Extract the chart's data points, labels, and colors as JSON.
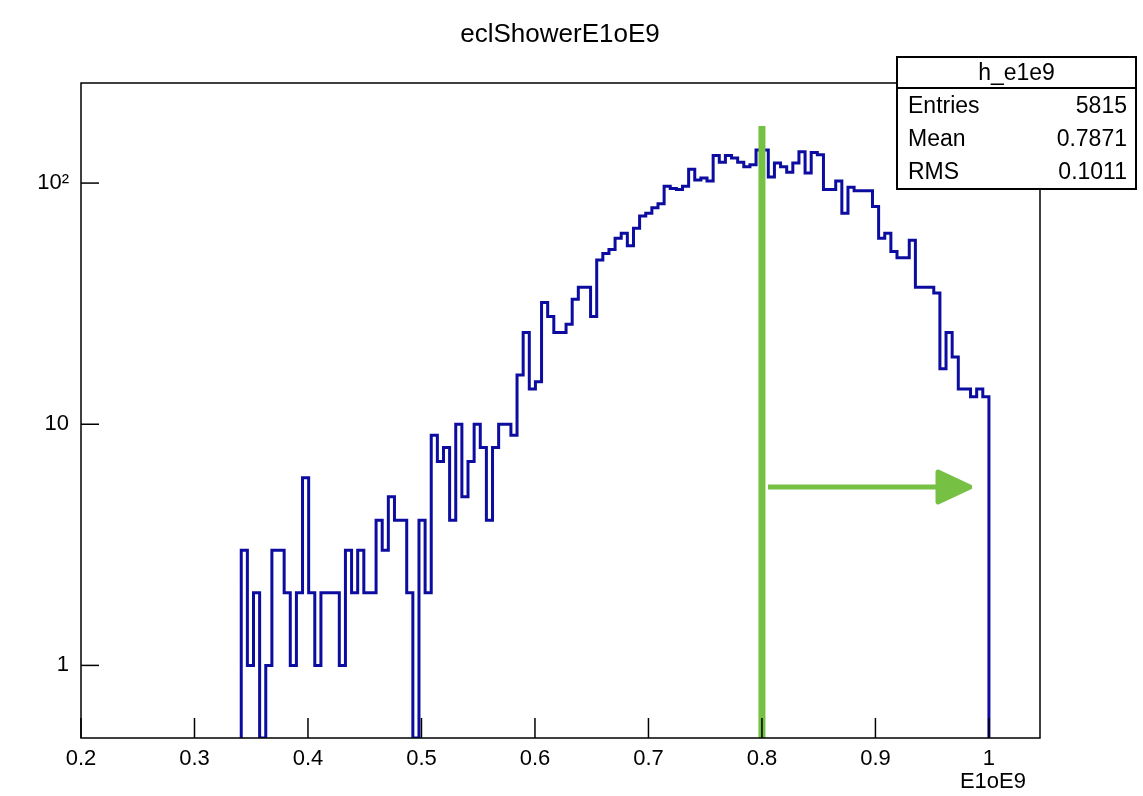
{
  "chart_data": {
    "type": "histogram",
    "title": "eclShowerE1oE9",
    "xlabel": "E1oE9",
    "bins": [
      0.3412,
      0.3466,
      0.352,
      0.3574,
      0.3628,
      0.3682,
      0.3736,
      0.379,
      0.3844,
      0.3898,
      0.3952,
      0.4006,
      0.406,
      0.4114,
      0.4168,
      0.4222,
      0.4276,
      0.433,
      0.4384,
      0.4438,
      0.4492,
      0.4546,
      0.46,
      0.4654,
      0.4708,
      0.4762,
      0.4816,
      0.487,
      0.4924,
      0.4978,
      0.5032,
      0.5086,
      0.514,
      0.5194,
      0.5248,
      0.5302,
      0.5356,
      0.541,
      0.5464,
      0.5518,
      0.5572,
      0.5626,
      0.568,
      0.5734,
      0.5788,
      0.5842,
      0.5896,
      0.595,
      0.6004,
      0.6058,
      0.6112,
      0.6166,
      0.622,
      0.6274,
      0.6328,
      0.6382,
      0.6436,
      0.649,
      0.6544,
      0.6598,
      0.6652,
      0.6706,
      0.676,
      0.6814,
      0.6868,
      0.6922,
      0.6976,
      0.703,
      0.7084,
      0.7138,
      0.7192,
      0.7246,
      0.73,
      0.7354,
      0.7408,
      0.7462,
      0.7516,
      0.757,
      0.7624,
      0.7678,
      0.7732,
      0.7786,
      0.784,
      0.7894,
      0.7948,
      0.8002,
      0.8056,
      0.811,
      0.8164,
      0.8218,
      0.8272,
      0.8326,
      0.838,
      0.8434,
      0.8488,
      0.8542,
      0.8596,
      0.865,
      0.8704,
      0.8758,
      0.8812,
      0.8866,
      0.892,
      0.8974,
      0.9028,
      0.9082,
      0.9136,
      0.919,
      0.9244,
      0.9298,
      0.9352,
      0.9406,
      0.946,
      0.9514,
      0.9568,
      0.9622,
      0.9676,
      0.973,
      0.9784,
      0.9838,
      0.9892,
      0.9946,
      1.0
    ],
    "values": [
      3,
      1,
      2,
      null,
      1,
      3,
      3,
      2,
      1,
      2,
      6,
      2,
      1,
      2,
      2,
      2,
      1,
      3,
      2,
      3,
      2,
      2,
      4,
      3,
      5,
      4,
      4,
      2,
      null,
      4,
      2,
      9,
      7,
      8,
      4,
      10,
      5,
      7,
      10,
      8,
      4,
      8,
      10,
      10,
      9,
      16,
      24,
      14,
      15,
      32,
      28,
      24,
      24,
      26,
      33,
      37,
      37,
      28,
      48,
      51,
      53,
      59,
      62,
      55,
      65,
      73,
      75,
      79,
      82,
      97,
      95,
      94,
      97,
      114,
      103,
      105,
      102,
      130,
      122,
      130,
      127,
      122,
      117,
      119,
      137,
      137,
      106,
      121,
      117,
      111,
      121,
      135,
      110,
      134,
      131,
      94,
      94,
      102,
      75,
      96,
      93,
      93,
      93,
      80,
      59,
      62,
      52,
      49,
      49,
      58,
      37,
      37,
      37,
      35,
      17,
      24,
      19,
      14,
      14,
      13,
      14,
      13
    ],
    "color": "#0c0ca0",
    "xlim": [
      0.2,
      1.045
    ],
    "xticks": [
      0.2,
      0.3,
      0.4,
      0.5,
      0.6,
      0.7,
      0.8,
      0.9,
      1
    ],
    "ylim": [
      0.5,
      260
    ],
    "yticks": [
      1,
      10,
      {
        "value": 100,
        "label": "10²"
      }
    ],
    "log": "y",
    "grid": false,
    "legend": false,
    "ref_lines": [
      {
        "axis": "x",
        "value": 0.8,
        "color": "#76c043"
      }
    ],
    "annotations": [
      "h_e1e9",
      "Entries",
      "5815",
      "Mean",
      "0.7871",
      "RMS",
      "0.1011"
    ]
  }
}
